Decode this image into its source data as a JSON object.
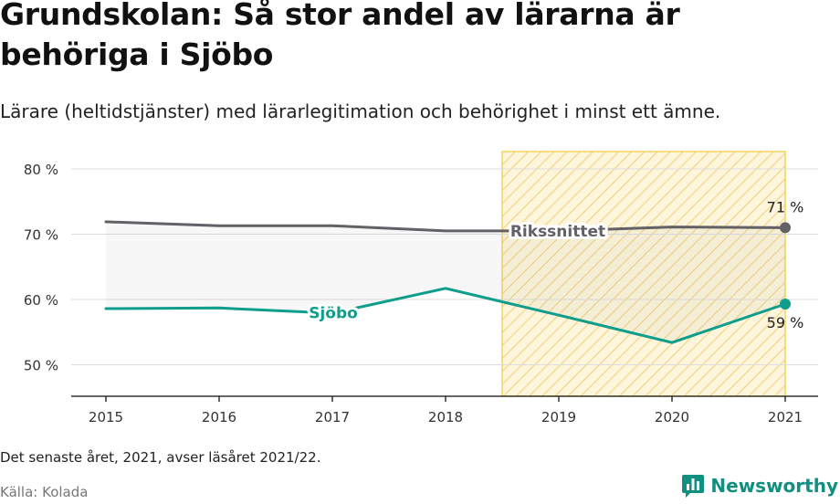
{
  "title": "Grundskolan: Så stor andel av lärarna är behöriga i Sjöbo",
  "subtitle": "Lärare (heltidstjänster) med lärarlegitimation och behörighet i minst ett ämne.",
  "note": "Det senaste året, 2021, avser läsåret 2021/22.",
  "source": "Källa: Kolada",
  "brand": {
    "name": "Newsworthy",
    "icon": "bar-chart-logo-icon",
    "color": "#11907f"
  },
  "chart_data": {
    "type": "line",
    "x": [
      "2015",
      "2016",
      "2017",
      "2018",
      "2019",
      "2020",
      "2021"
    ],
    "yticks": [
      "50 %",
      "60 %",
      "70 %",
      "80 %"
    ],
    "ylim": [
      45,
      83
    ],
    "grid": true,
    "series": [
      {
        "name": "Rikssnittet",
        "color": "#636066",
        "values": [
          71.9,
          71.3,
          71.3,
          70.5,
          70.5,
          71.1,
          71.0
        ],
        "end_label": "71 %"
      },
      {
        "name": "Sjöbo",
        "color": "#0f9d8c",
        "values": [
          58.6,
          58.7,
          57.9,
          61.7,
          57.6,
          53.4,
          59.3
        ],
        "end_label": "59 %"
      }
    ],
    "highlight": {
      "from": "2019",
      "to": "2021",
      "color": "#f5d25a"
    }
  }
}
